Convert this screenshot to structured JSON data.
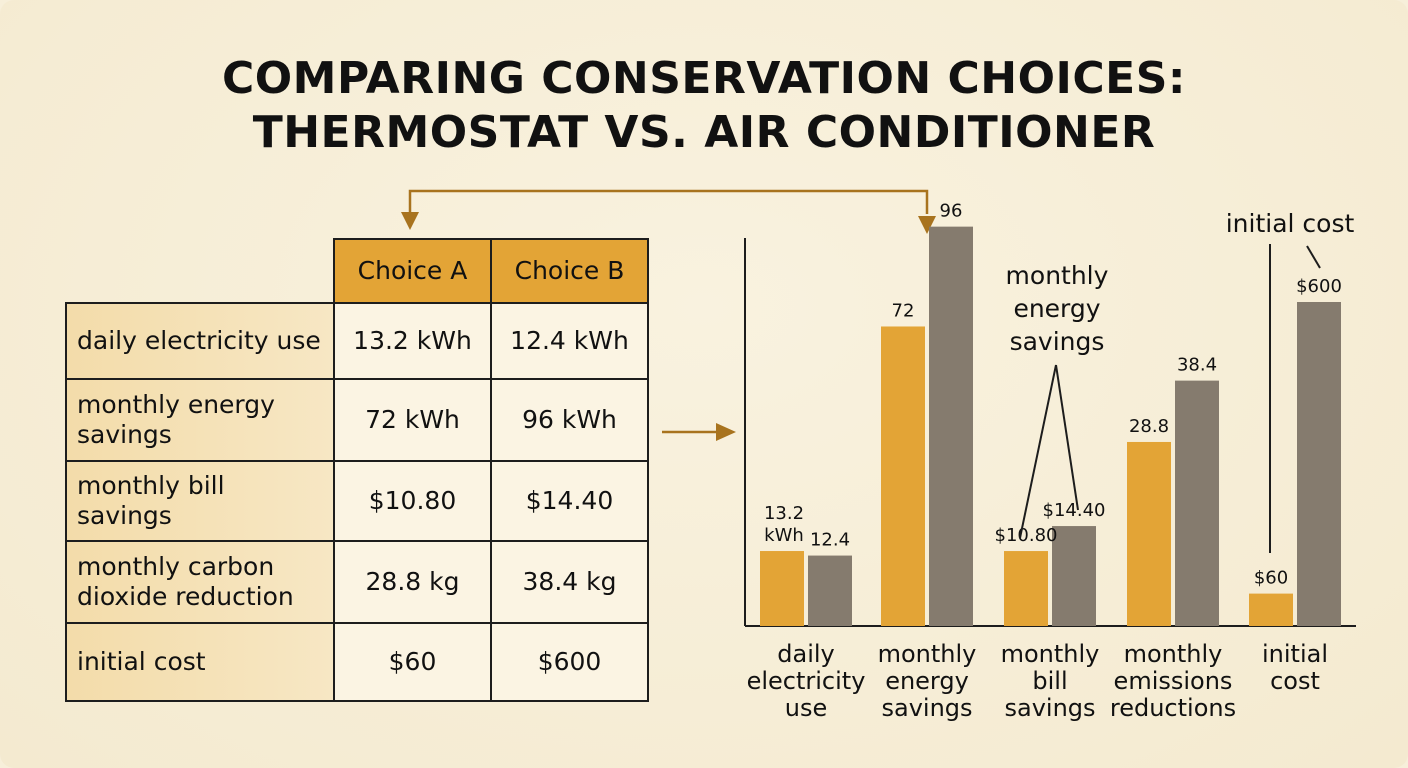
{
  "title": {
    "line1": "COMPARING CONSERVATION CHOICES:",
    "line2": "THERMOSTAT VS. AIR CONDITIONER"
  },
  "table": {
    "headers": [
      "Choice A",
      "Choice B"
    ],
    "rows": [
      {
        "label": "daily electricity use",
        "a": "13.2 kWh",
        "b": "12.4 kWh"
      },
      {
        "label": "monthly energy savings",
        "a": "72 kWh",
        "b": "96 kWh"
      },
      {
        "label": "monthly bill savings",
        "a": "$10.80",
        "b": "$14.40"
      },
      {
        "label": "monthly carbon dioxide reduction",
        "a": "28.8 kg",
        "b": "38.4 kg"
      },
      {
        "label": "initial cost",
        "a": "$60",
        "b": "$600"
      }
    ]
  },
  "colors": {
    "choice_a": "#e3a436",
    "choice_b": "#857b6e",
    "arrow": "#a8731e"
  },
  "chart_data": {
    "type": "bar",
    "categories": [
      "daily electricity use",
      "monthly energy savings",
      "monthly bill savings",
      "monthly emissions reductions",
      "initial cost"
    ],
    "series": [
      {
        "values": [
          13.2,
          72,
          10.8,
          28.8,
          60
        ],
        "labels": [
          "13.2 kWh",
          "72",
          "$10.80",
          "28.8",
          "$60"
        ]
      },
      {
        "values": [
          12.4,
          96,
          14.4,
          38.4,
          600
        ],
        "labels": [
          "12.4",
          "96",
          "$14.40",
          "38.4",
          "$600"
        ]
      }
    ],
    "annotations": [
      "monthly energy savings",
      "initial cost"
    ],
    "axis_scale": "mixed per category (not to a common scale)",
    "grid": false,
    "legend": "none"
  }
}
